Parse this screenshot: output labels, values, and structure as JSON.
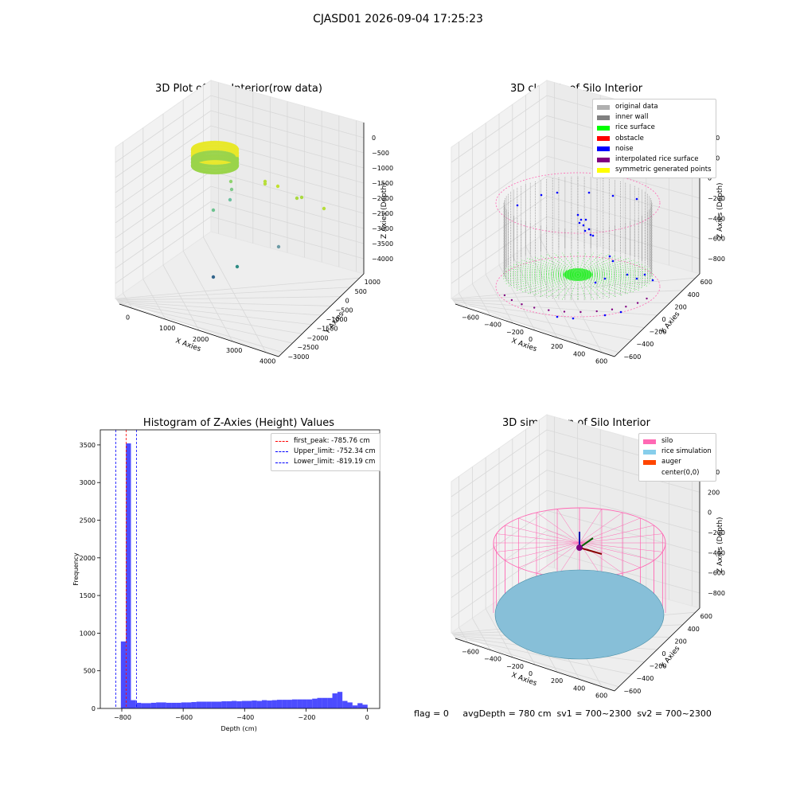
{
  "figure": {
    "suptitle": "CJASD01 2026-09-04 17:25:23",
    "footer": "flag = 0     avgDepth = 780 cm  sv1 = 700~2300  sv2 = 700~2300"
  },
  "panels": {
    "raw": {
      "title": "3D Plot of Silo Interior(row data)",
      "xlabel": "X Axies",
      "ylabel": "Y Axies",
      "zlabel": "Z Axies (Depth)",
      "xticks": [
        "0",
        "1000",
        "2000",
        "3000",
        "4000"
      ],
      "yticks": [
        "−3000",
        "−2500",
        "−2000",
        "−1500",
        "−1000",
        "−500",
        "0",
        "500",
        "1000"
      ],
      "zticks": [
        "−4000",
        "−3500",
        "−3000",
        "−2500",
        "−2000",
        "−1500",
        "−1000",
        "−500",
        "0"
      ]
    },
    "classify": {
      "title": "3D classify of Silo Interior",
      "xlabel": "X Axies",
      "ylabel": "Y Axies",
      "zlabel": "Z Axies (Depth)",
      "xticks": [
        "−600",
        "−400",
        "−200",
        "0",
        "200",
        "400",
        "600"
      ],
      "yticks": [
        "−600",
        "−400",
        "−200",
        "0",
        "200",
        "400",
        "600"
      ],
      "zticks": [
        "−800",
        "−600",
        "−400",
        "−200",
        "0",
        "200",
        "400"
      ],
      "legend": [
        {
          "label": "original data",
          "color": "#b0b0b0"
        },
        {
          "label": "inner wall",
          "color": "#808080"
        },
        {
          "label": "rice surface",
          "color": "#00ff00"
        },
        {
          "label": "obstacle",
          "color": "#ff0000"
        },
        {
          "label": "noise",
          "color": "#0000ff"
        },
        {
          "label": "interpolated rice surface",
          "color": "#800080"
        },
        {
          "label": "symmetric generated points",
          "color": "#ffff00"
        }
      ]
    },
    "simulation": {
      "title": "3D simulation of Silo Interior",
      "xlabel": "X Axies",
      "ylabel": "Y Axies",
      "zlabel": "Z Axies (Depth)",
      "xticks": [
        "−600",
        "−400",
        "−200",
        "0",
        "200",
        "400",
        "600"
      ],
      "yticks": [
        "−600",
        "−400",
        "−200",
        "0",
        "200",
        "400",
        "600"
      ],
      "zticks": [
        "−800",
        "−600",
        "−400",
        "−200",
        "0",
        "200",
        "400"
      ],
      "legend": [
        {
          "label": "silo",
          "color": "#ff69b4"
        },
        {
          "label": "rice simulation",
          "color": "#87ceeb"
        },
        {
          "label": "auger",
          "color": "#ff4500"
        },
        {
          "label": "center(0,0)",
          "color": ""
        }
      ]
    }
  },
  "chart_data": {
    "type": "bar",
    "title": "Histogram of Z-Axies (Height) Values",
    "xlabel": "Depth (cm)",
    "ylabel": "Frequency",
    "xlim": [
      -870,
      40
    ],
    "ylim": [
      0,
      3700
    ],
    "xticks": [
      -800,
      -600,
      -400,
      -200,
      0
    ],
    "yticks": [
      0,
      500,
      1000,
      1500,
      2000,
      2500,
      3000,
      3500
    ],
    "bar_color": "#0000ff",
    "bin_width": 16.4,
    "bins_left": [
      -803,
      -786.6,
      -770.2,
      -753.8,
      -737.4,
      -721,
      -704.6,
      -688.2,
      -671.8,
      -655.4,
      -639,
      -622.6,
      -606.2,
      -589.8,
      -573.4,
      -557,
      -540.6,
      -524.2,
      -507.8,
      -491.4,
      -475,
      -458.6,
      -442.2,
      -425.8,
      -409.4,
      -393,
      -376.6,
      -360.2,
      -343.8,
      -327.4,
      -311,
      -294.6,
      -278.2,
      -261.8,
      -245.4,
      -229,
      -212.6,
      -196.2,
      -179.8,
      -163.4,
      -147,
      -130.6,
      -114.2,
      -97.8,
      -81.4,
      -65,
      -48.6,
      -32.2,
      -15.8
    ],
    "values": [
      890,
      3520,
      110,
      75,
      70,
      70,
      75,
      80,
      80,
      75,
      75,
      75,
      80,
      80,
      85,
      90,
      90,
      90,
      90,
      90,
      95,
      95,
      100,
      95,
      100,
      100,
      105,
      100,
      110,
      105,
      110,
      115,
      115,
      115,
      120,
      120,
      120,
      120,
      130,
      140,
      140,
      140,
      200,
      220,
      100,
      80,
      40,
      70,
      50
    ],
    "vlines": [
      {
        "label": "first_peak: -785.76 cm",
        "x": -785.76,
        "color": "#ff0000"
      },
      {
        "label": "Upper_limit: -752.34 cm",
        "x": -752.34,
        "color": "#0000ff"
      },
      {
        "label": "Lower_limit: -819.19 cm",
        "x": -819.19,
        "color": "#0000ff"
      }
    ],
    "legend_position": "top-right"
  }
}
